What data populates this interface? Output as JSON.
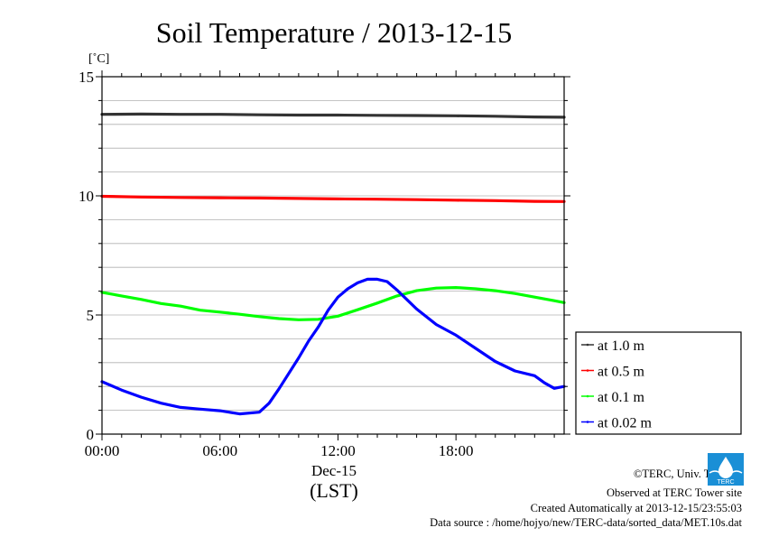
{
  "chart_data": {
    "type": "line",
    "title": "Soil Temperature / 2013-12-15",
    "ylabel": "[˚C]",
    "xlabel_date": "Dec-15",
    "xlabel_tz": "(LST)",
    "ylim": [
      0,
      15
    ],
    "xlim_hours": [
      0,
      23.5
    ],
    "yticks": [
      0,
      5,
      10,
      15
    ],
    "xticks": [
      {
        "hour": 0,
        "label": "00:00"
      },
      {
        "hour": 6,
        "label": "06:00"
      },
      {
        "hour": 12,
        "label": "12:00"
      },
      {
        "hour": 18,
        "label": "18:00"
      }
    ],
    "grid": true,
    "legend_position": "bottom-right, outside plot",
    "series": [
      {
        "name": "at 1.0 m",
        "color": "#333333",
        "x": [
          0,
          2,
          4,
          6,
          8,
          10,
          12,
          14,
          16,
          18,
          20,
          22,
          23.5
        ],
        "y": [
          13.42,
          13.43,
          13.42,
          13.42,
          13.4,
          13.39,
          13.39,
          13.38,
          13.37,
          13.36,
          13.34,
          13.31,
          13.3
        ]
      },
      {
        "name": "at 0.5 m",
        "color": "#ff0000",
        "x": [
          0,
          2,
          4,
          6,
          8,
          10,
          12,
          14,
          16,
          18,
          20,
          22,
          23.5
        ],
        "y": [
          9.98,
          9.95,
          9.93,
          9.92,
          9.91,
          9.89,
          9.87,
          9.86,
          9.84,
          9.82,
          9.8,
          9.77,
          9.76
        ]
      },
      {
        "name": "at 0.1 m",
        "color": "#00ff00",
        "x": [
          0,
          1,
          2,
          3,
          4,
          5,
          6,
          7,
          8,
          9,
          10,
          11,
          12,
          13,
          14,
          15,
          16,
          17,
          18,
          19,
          20,
          21,
          22,
          23,
          23.5
        ],
        "y": [
          5.95,
          5.8,
          5.65,
          5.48,
          5.37,
          5.2,
          5.12,
          5.03,
          4.93,
          4.85,
          4.8,
          4.82,
          4.95,
          5.22,
          5.5,
          5.8,
          6.02,
          6.13,
          6.15,
          6.1,
          6.02,
          5.9,
          5.75,
          5.6,
          5.52
        ]
      },
      {
        "name": "at 0.02 m",
        "color": "#0000ff",
        "x": [
          0,
          1,
          2,
          3,
          4,
          5,
          6,
          7,
          8,
          8.5,
          9,
          10,
          10.5,
          11,
          11.5,
          12,
          12.5,
          13,
          13.5,
          14,
          14.5,
          15,
          16,
          17,
          18,
          19,
          20,
          21,
          22,
          22.5,
          23,
          23.5
        ],
        "y": [
          2.2,
          1.85,
          1.55,
          1.3,
          1.12,
          1.05,
          0.98,
          0.85,
          0.92,
          1.3,
          1.9,
          3.2,
          3.9,
          4.5,
          5.2,
          5.75,
          6.1,
          6.35,
          6.5,
          6.5,
          6.4,
          6.05,
          5.25,
          4.6,
          4.15,
          3.6,
          3.05,
          2.65,
          2.45,
          2.15,
          1.92,
          2.0
        ]
      }
    ]
  },
  "footer": {
    "copyright": "©TERC, Univ. Tsukuba",
    "observed": "Observed at TERC Tower site",
    "created": "Created Automatically at 2013-12-15/23:55:03",
    "source": "Data source : /home/hojyo/new/TERC-data/sorted_data/MET.10s.dat",
    "logo_text": "TERC",
    "logo_color": "#1a8fd6"
  }
}
